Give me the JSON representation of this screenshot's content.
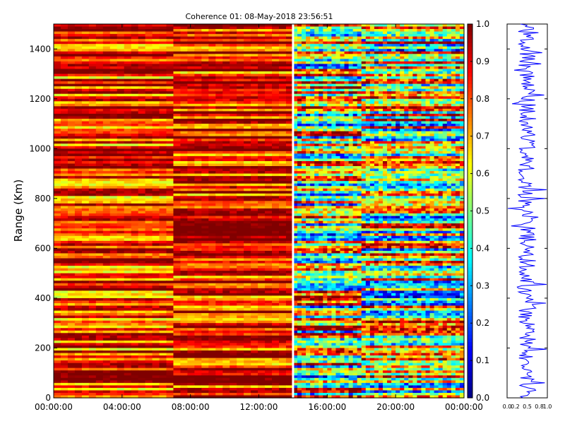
{
  "chart_data": [
    {
      "type": "heatmap",
      "title": "Coherence 01: 08-May-2018 23:56:51",
      "ylabel": "Range (Km)",
      "xlabel": "",
      "ylim": [
        0,
        1500
      ],
      "y_ticks": [
        "0",
        "200",
        "400",
        "600",
        "800",
        "1000",
        "1200",
        "1400"
      ],
      "x_ticks": [
        "00:00:00",
        "04:00:00",
        "08:00:00",
        "12:00:00",
        "16:00:00",
        "20:00:00",
        "00:00:00"
      ],
      "x_start": "00:00:00",
      "x_end": "24:00:00",
      "colormap": "jet",
      "colorbar_range": [
        0.0,
        1.0
      ],
      "colorbar_ticks": [
        "0.0",
        "0.1",
        "0.2",
        "0.3",
        "0.4",
        "0.5",
        "0.6",
        "0.7",
        "0.8",
        "0.9",
        "1.0"
      ],
      "gap_time": "14:00:00",
      "segments": [
        {
          "start": "00:00:00",
          "end": "07:00:00",
          "mean_coherence": 0.82
        },
        {
          "start": "07:00:00",
          "end": "14:00:00",
          "mean_coherence": 0.86
        },
        {
          "start": "14:00:00",
          "end": "18:00:00",
          "mean_coherence": 0.6
        },
        {
          "start": "18:00:00",
          "end": "24:00:00",
          "mean_coherence": 0.58
        }
      ]
    },
    {
      "type": "line",
      "series": [
        {
          "color": "#0000ff"
        }
      ],
      "xlim": [
        0.0,
        1.0
      ],
      "ylim": [
        0,
        1500
      ],
      "x_ticks": [
        "0.0",
        "0.2",
        "0.5",
        "0.8",
        "1.0"
      ]
    }
  ]
}
